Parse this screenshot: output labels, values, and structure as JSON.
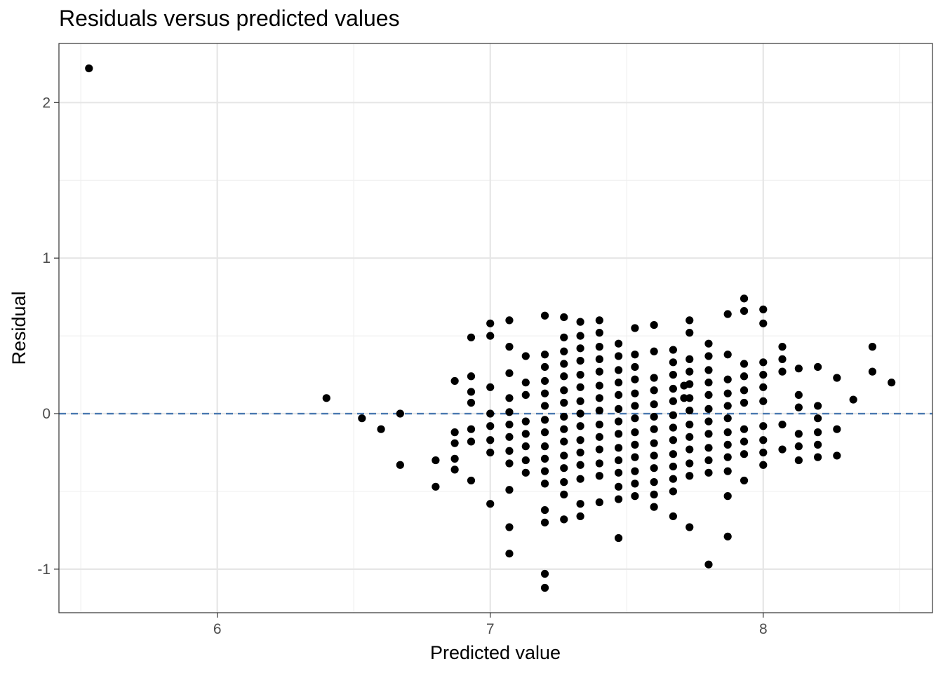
{
  "chart_data": {
    "type": "scatter",
    "title": "Residuals versus predicted values",
    "xlabel": "Predicted value",
    "ylabel": "Residual",
    "xlim": [
      5.42,
      8.62
    ],
    "ylim": [
      -1.28,
      2.38
    ],
    "xticks": [
      6,
      7,
      8
    ],
    "xtick_labels": [
      "6",
      "7",
      "8"
    ],
    "yticks": [
      -1,
      0,
      1,
      2
    ],
    "ytick_labels": [
      "-1",
      "0",
      "1",
      "2"
    ],
    "grid": true,
    "reference_line": {
      "y": 0,
      "style": "dashed",
      "color": "#4a78b0"
    },
    "point_color": "#000000",
    "series": [
      {
        "points": [
          [
            5.53,
            2.22
          ],
          [
            6.4,
            0.1
          ],
          [
            6.53,
            -0.03
          ],
          [
            6.6,
            -0.1
          ],
          [
            6.67,
            0.0
          ],
          [
            6.67,
            -0.33
          ],
          [
            6.8,
            -0.3
          ],
          [
            6.8,
            -0.47
          ],
          [
            6.87,
            0.21
          ],
          [
            6.87,
            -0.12
          ],
          [
            6.87,
            -0.19
          ],
          [
            6.87,
            -0.29
          ],
          [
            6.87,
            -0.36
          ],
          [
            6.93,
            0.49
          ],
          [
            6.93,
            0.24
          ],
          [
            6.93,
            0.14
          ],
          [
            6.93,
            0.07
          ],
          [
            6.93,
            -0.1
          ],
          [
            6.93,
            -0.18
          ],
          [
            6.93,
            -0.43
          ],
          [
            7.0,
            0.58
          ],
          [
            7.0,
            0.5
          ],
          [
            7.0,
            0.17
          ],
          [
            7.0,
            0.0
          ],
          [
            7.0,
            -0.08
          ],
          [
            7.0,
            -0.17
          ],
          [
            7.0,
            -0.25
          ],
          [
            7.0,
            -0.58
          ],
          [
            7.07,
            0.6
          ],
          [
            7.07,
            0.43
          ],
          [
            7.07,
            0.26
          ],
          [
            7.07,
            0.1
          ],
          [
            7.07,
            0.01
          ],
          [
            7.07,
            -0.07
          ],
          [
            7.07,
            -0.15
          ],
          [
            7.07,
            -0.24
          ],
          [
            7.07,
            -0.32
          ],
          [
            7.07,
            -0.49
          ],
          [
            7.07,
            -0.73
          ],
          [
            7.07,
            -0.9
          ],
          [
            7.13,
            0.37
          ],
          [
            7.13,
            0.2
          ],
          [
            7.13,
            0.12
          ],
          [
            7.13,
            -0.05
          ],
          [
            7.13,
            -0.13
          ],
          [
            7.13,
            -0.21
          ],
          [
            7.13,
            -0.3
          ],
          [
            7.13,
            -0.38
          ],
          [
            7.2,
            0.63
          ],
          [
            7.2,
            0.38
          ],
          [
            7.2,
            0.3
          ],
          [
            7.2,
            0.21
          ],
          [
            7.2,
            0.13
          ],
          [
            7.2,
            0.05
          ],
          [
            7.2,
            -0.04
          ],
          [
            7.2,
            -0.12
          ],
          [
            7.2,
            -0.21
          ],
          [
            7.2,
            -0.29
          ],
          [
            7.2,
            -0.37
          ],
          [
            7.2,
            -0.45
          ],
          [
            7.2,
            -0.62
          ],
          [
            7.2,
            -0.7
          ],
          [
            7.2,
            -1.03
          ],
          [
            7.2,
            -1.12
          ],
          [
            7.27,
            0.62
          ],
          [
            7.27,
            0.49
          ],
          [
            7.27,
            0.4
          ],
          [
            7.27,
            0.32
          ],
          [
            7.27,
            0.24
          ],
          [
            7.27,
            0.15
          ],
          [
            7.27,
            0.07
          ],
          [
            7.27,
            -0.02
          ],
          [
            7.27,
            -0.1
          ],
          [
            7.27,
            -0.18
          ],
          [
            7.27,
            -0.27
          ],
          [
            7.27,
            -0.35
          ],
          [
            7.27,
            -0.44
          ],
          [
            7.27,
            -0.52
          ],
          [
            7.27,
            -0.68
          ],
          [
            7.33,
            0.59
          ],
          [
            7.33,
            0.5
          ],
          [
            7.33,
            0.42
          ],
          [
            7.33,
            0.34
          ],
          [
            7.33,
            0.25
          ],
          [
            7.33,
            0.17
          ],
          [
            7.33,
            0.08
          ],
          [
            7.33,
            0.0
          ],
          [
            7.33,
            -0.08
          ],
          [
            7.33,
            -0.17
          ],
          [
            7.33,
            -0.25
          ],
          [
            7.33,
            -0.33
          ],
          [
            7.33,
            -0.42
          ],
          [
            7.33,
            -0.58
          ],
          [
            7.33,
            -0.66
          ],
          [
            7.4,
            0.6
          ],
          [
            7.4,
            0.52
          ],
          [
            7.4,
            0.43
          ],
          [
            7.4,
            0.35
          ],
          [
            7.4,
            0.27
          ],
          [
            7.4,
            0.18
          ],
          [
            7.4,
            0.1
          ],
          [
            7.4,
            0.02
          ],
          [
            7.4,
            -0.07
          ],
          [
            7.4,
            -0.15
          ],
          [
            7.4,
            -0.23
          ],
          [
            7.4,
            -0.32
          ],
          [
            7.4,
            -0.4
          ],
          [
            7.4,
            -0.57
          ],
          [
            7.47,
            0.45
          ],
          [
            7.47,
            0.37
          ],
          [
            7.47,
            0.28
          ],
          [
            7.47,
            0.2
          ],
          [
            7.47,
            0.12
          ],
          [
            7.47,
            0.03
          ],
          [
            7.47,
            -0.05
          ],
          [
            7.47,
            -0.13
          ],
          [
            7.47,
            -0.22
          ],
          [
            7.47,
            -0.3
          ],
          [
            7.47,
            -0.38
          ],
          [
            7.47,
            -0.47
          ],
          [
            7.47,
            -0.55
          ],
          [
            7.47,
            -0.8
          ],
          [
            7.53,
            0.55
          ],
          [
            7.53,
            0.38
          ],
          [
            7.53,
            0.3
          ],
          [
            7.53,
            0.22
          ],
          [
            7.53,
            0.13
          ],
          [
            7.53,
            0.05
          ],
          [
            7.53,
            -0.03
          ],
          [
            7.53,
            -0.12
          ],
          [
            7.53,
            -0.2
          ],
          [
            7.53,
            -0.28
          ],
          [
            7.53,
            -0.37
          ],
          [
            7.53,
            -0.45
          ],
          [
            7.53,
            -0.53
          ],
          [
            7.6,
            0.57
          ],
          [
            7.6,
            0.4
          ],
          [
            7.6,
            0.23
          ],
          [
            7.6,
            0.15
          ],
          [
            7.6,
            0.06
          ],
          [
            7.6,
            -0.02
          ],
          [
            7.6,
            -0.1
          ],
          [
            7.6,
            -0.19
          ],
          [
            7.6,
            -0.27
          ],
          [
            7.6,
            -0.35
          ],
          [
            7.6,
            -0.44
          ],
          [
            7.6,
            -0.52
          ],
          [
            7.6,
            -0.6
          ],
          [
            7.67,
            0.41
          ],
          [
            7.67,
            0.33
          ],
          [
            7.67,
            0.25
          ],
          [
            7.67,
            0.16
          ],
          [
            7.67,
            0.08
          ],
          [
            7.67,
            -0.01
          ],
          [
            7.67,
            -0.09
          ],
          [
            7.67,
            -0.17
          ],
          [
            7.67,
            -0.26
          ],
          [
            7.67,
            -0.34
          ],
          [
            7.67,
            -0.42
          ],
          [
            7.67,
            -0.5
          ],
          [
            7.67,
            -0.66
          ],
          [
            7.71,
            0.18
          ],
          [
            7.71,
            0.1
          ],
          [
            7.73,
            0.6
          ],
          [
            7.73,
            0.52
          ],
          [
            7.73,
            0.35
          ],
          [
            7.73,
            0.27
          ],
          [
            7.73,
            0.19
          ],
          [
            7.73,
            0.1
          ],
          [
            7.73,
            0.02
          ],
          [
            7.73,
            -0.07
          ],
          [
            7.73,
            -0.15
          ],
          [
            7.73,
            -0.23
          ],
          [
            7.73,
            -0.32
          ],
          [
            7.73,
            -0.4
          ],
          [
            7.73,
            -0.73
          ],
          [
            7.8,
            0.45
          ],
          [
            7.8,
            0.37
          ],
          [
            7.8,
            0.28
          ],
          [
            7.8,
            0.2
          ],
          [
            7.8,
            0.12
          ],
          [
            7.8,
            0.03
          ],
          [
            7.8,
            -0.05
          ],
          [
            7.8,
            -0.13
          ],
          [
            7.8,
            -0.22
          ],
          [
            7.8,
            -0.3
          ],
          [
            7.8,
            -0.38
          ],
          [
            7.8,
            -0.97
          ],
          [
            7.87,
            0.64
          ],
          [
            7.87,
            0.38
          ],
          [
            7.87,
            0.22
          ],
          [
            7.87,
            0.13
          ],
          [
            7.87,
            0.05
          ],
          [
            7.87,
            -0.03
          ],
          [
            7.87,
            -0.12
          ],
          [
            7.87,
            -0.2
          ],
          [
            7.87,
            -0.28
          ],
          [
            7.87,
            -0.37
          ],
          [
            7.87,
            -0.53
          ],
          [
            7.87,
            -0.79
          ],
          [
            7.93,
            0.74
          ],
          [
            7.93,
            0.66
          ],
          [
            7.93,
            0.32
          ],
          [
            7.93,
            0.24
          ],
          [
            7.93,
            0.15
          ],
          [
            7.93,
            0.07
          ],
          [
            7.93,
            -0.1
          ],
          [
            7.93,
            -0.18
          ],
          [
            7.93,
            -0.26
          ],
          [
            7.93,
            -0.43
          ],
          [
            8.0,
            0.67
          ],
          [
            8.0,
            0.58
          ],
          [
            8.0,
            0.33
          ],
          [
            8.0,
            0.25
          ],
          [
            8.0,
            0.17
          ],
          [
            8.0,
            0.08
          ],
          [
            8.0,
            -0.08
          ],
          [
            8.0,
            -0.17
          ],
          [
            8.0,
            -0.25
          ],
          [
            8.0,
            -0.33
          ],
          [
            8.07,
            0.43
          ],
          [
            8.07,
            0.35
          ],
          [
            8.07,
            0.27
          ],
          [
            8.07,
            -0.07
          ],
          [
            8.07,
            -0.23
          ],
          [
            8.13,
            0.29
          ],
          [
            8.13,
            0.12
          ],
          [
            8.13,
            0.04
          ],
          [
            8.13,
            -0.13
          ],
          [
            8.13,
            -0.21
          ],
          [
            8.13,
            -0.3
          ],
          [
            8.2,
            0.3
          ],
          [
            8.2,
            0.05
          ],
          [
            8.2,
            -0.03
          ],
          [
            8.2,
            -0.12
          ],
          [
            8.2,
            -0.2
          ],
          [
            8.2,
            -0.28
          ],
          [
            8.27,
            0.23
          ],
          [
            8.27,
            -0.1
          ],
          [
            8.27,
            -0.27
          ],
          [
            8.33,
            0.09
          ],
          [
            8.4,
            0.43
          ],
          [
            8.4,
            0.27
          ],
          [
            8.47,
            0.2
          ]
        ]
      }
    ]
  }
}
